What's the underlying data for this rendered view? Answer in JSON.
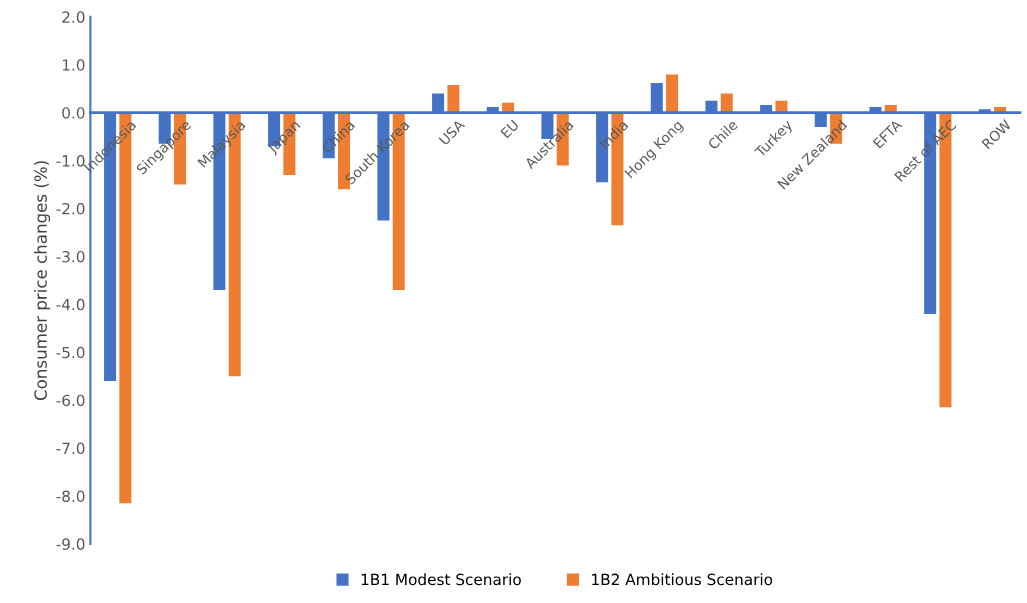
{
  "chart_data": {
    "type": "bar",
    "ylabel": "Consumer price changes (%)",
    "categories": [
      "Indonesia",
      "Singapore",
      "Malaysia",
      "Japan",
      "China",
      "South Korea",
      "USA",
      "EU",
      "Australia",
      "India",
      "Hong Kong",
      "Chile",
      "Turkey",
      "New Zealand",
      "EFTA",
      "Rest of AEC",
      "ROW"
    ],
    "series": [
      {
        "name": "1B1 Modest Scenario",
        "color": "#4472c4",
        "values": [
          -5.6,
          -0.65,
          -3.7,
          -0.7,
          -0.95,
          -2.25,
          0.4,
          0.12,
          -0.55,
          -1.45,
          0.62,
          0.25,
          0.16,
          -0.3,
          0.12,
          -4.2,
          0.07
        ]
      },
      {
        "name": "1B2 Ambitious Scenario",
        "color": "#ed7d31",
        "values": [
          -8.15,
          -1.5,
          -5.5,
          -1.3,
          -1.6,
          -3.7,
          0.58,
          0.21,
          -1.1,
          -2.35,
          0.8,
          0.4,
          0.25,
          -0.65,
          0.16,
          -6.15,
          0.12
        ]
      }
    ],
    "ylim": [
      -9.0,
      2.0
    ],
    "yticks": [
      {
        "value": -9,
        "label": "-9.0"
      },
      {
        "value": -8,
        "label": "-8.0"
      },
      {
        "value": -7,
        "label": "-7.0"
      },
      {
        "value": -6,
        "label": "-6.0"
      },
      {
        "value": -5,
        "label": "-5.0"
      },
      {
        "value": -4,
        "label": "-4.0"
      },
      {
        "value": -3,
        "label": "-3.0"
      },
      {
        "value": -2,
        "label": "-2.0"
      },
      {
        "value": -1,
        "label": "-1.0"
      },
      {
        "value": 0,
        "label": "0.0"
      },
      {
        "value": 1,
        "label": "1.0"
      },
      {
        "value": 2,
        "label": "2.0"
      }
    ],
    "grid": false,
    "legend": "bottom"
  }
}
